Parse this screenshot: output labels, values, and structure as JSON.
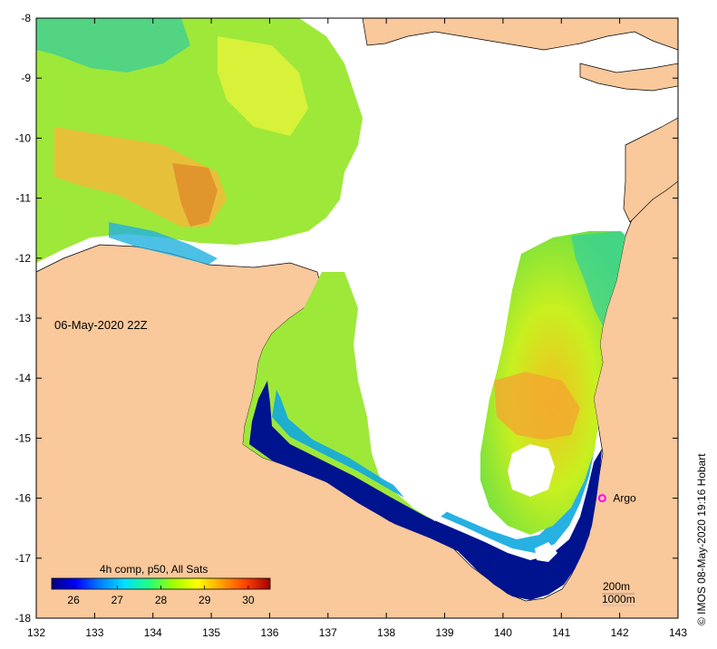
{
  "map": {
    "lon_range": [
      132,
      143
    ],
    "lat_range": [
      -18,
      -8
    ],
    "x_ticks": [
      "132",
      "133",
      "134",
      "135",
      "136",
      "137",
      "138",
      "139",
      "140",
      "141",
      "142",
      "143"
    ],
    "y_ticks": [
      "-8",
      "-9",
      "-10",
      "-11",
      "-12",
      "-13",
      "-14",
      "-15",
      "-16",
      "-17",
      "-18"
    ],
    "land_color": "#f9c89b",
    "no_data_color": "#ffffff"
  },
  "date_label": "06-May-2020 22Z",
  "credit": "© IMOS 08-May-2020 19:16 Hobart",
  "argo": {
    "label": "Argo",
    "lon": 141.7,
    "lat": -16.0,
    "color": "#ff00ff"
  },
  "colorbar": {
    "title": "4h comp, p50, All Sats",
    "min": 25.5,
    "max": 30.5,
    "ticks": [
      "26",
      "27",
      "28",
      "29",
      "30"
    ],
    "stops": [
      "#00007f",
      "#0000ff",
      "#0080ff",
      "#00e0ff",
      "#20ff80",
      "#a0ff00",
      "#ffff00",
      "#ffa000",
      "#ff4000",
      "#a00000"
    ]
  },
  "contours": {
    "c200": "200m",
    "c1000": "1000m"
  }
}
